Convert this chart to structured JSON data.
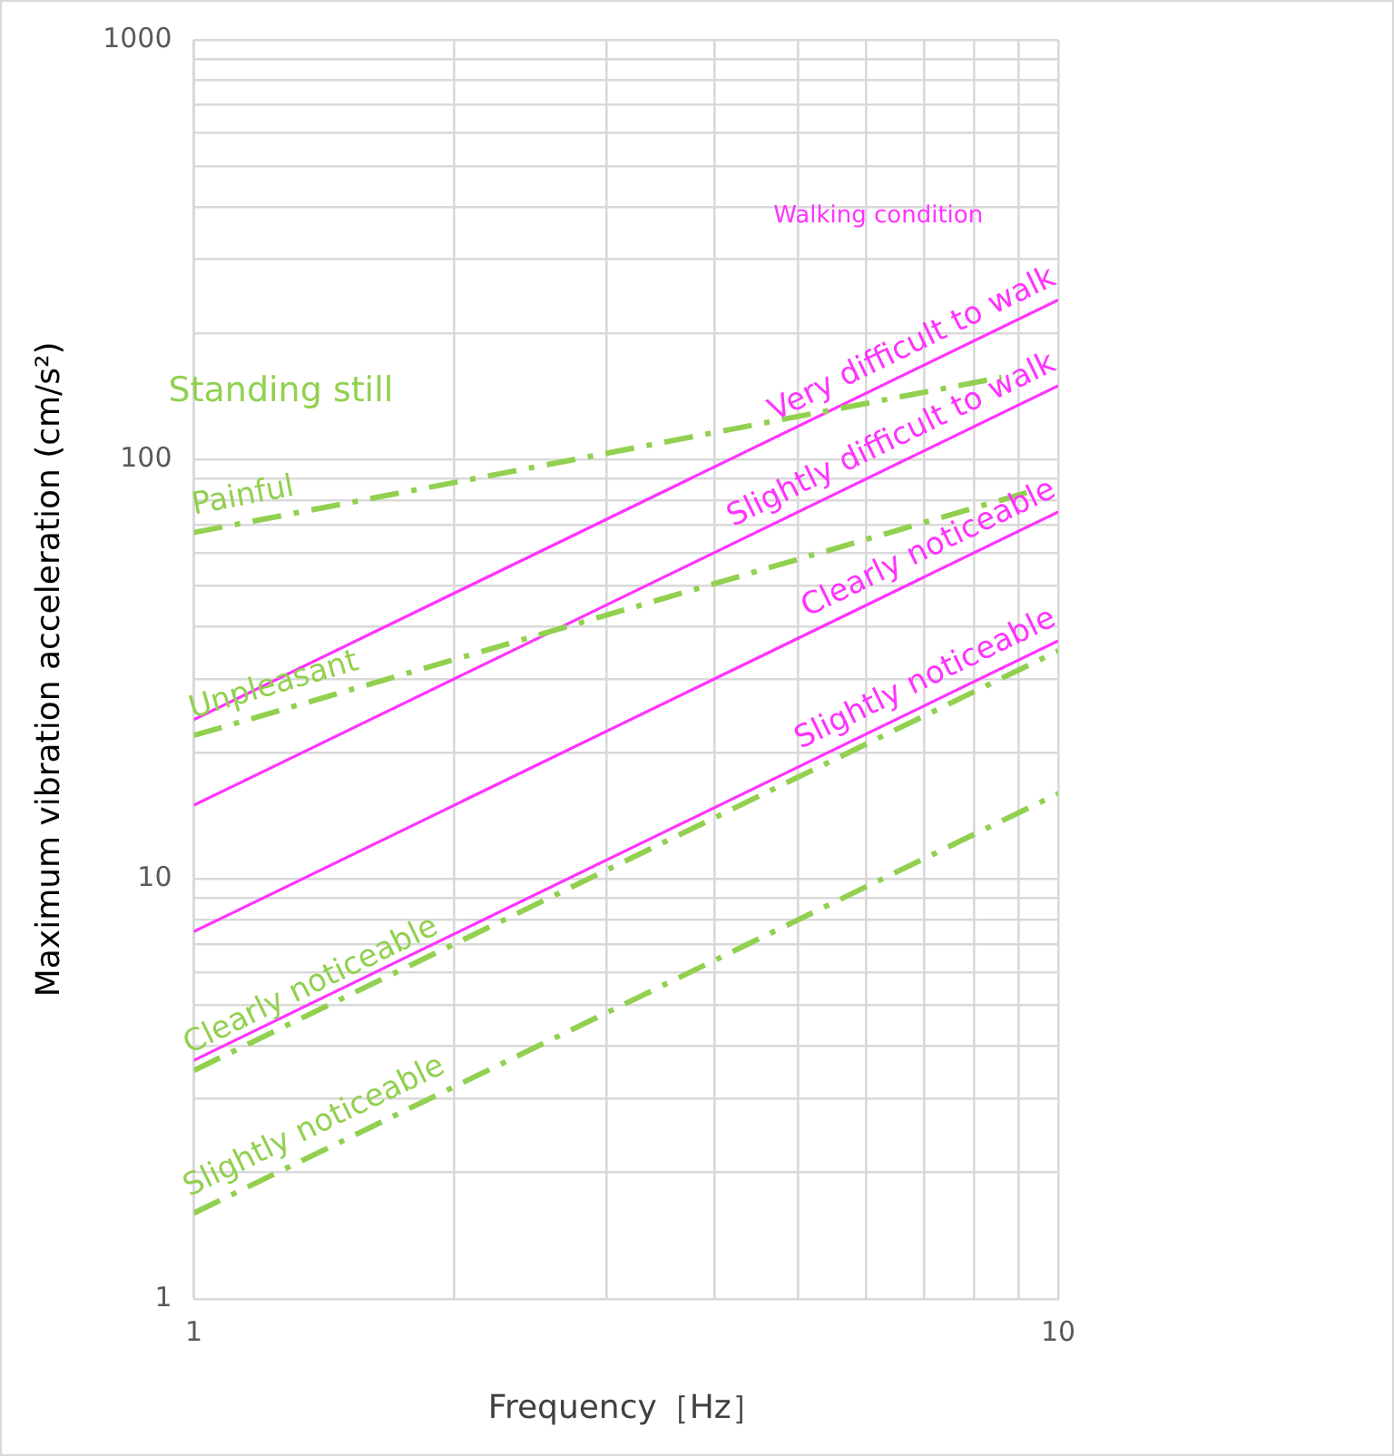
{
  "chart_data": {
    "type": "line",
    "xlabel": "Frequency［Hz］",
    "ylabel": "Maximum vibration acceleration (cm/s²)",
    "log": "xy",
    "grid": true,
    "legend": false,
    "marker": "none",
    "xlim": [
      1,
      10
    ],
    "xticks": [
      1,
      {
        "value": 2,
        "label": null
      },
      {
        "value": 3,
        "label": null
      },
      {
        "value": 4,
        "label": null
      },
      {
        "value": 5,
        "label": null
      },
      {
        "value": 6,
        "label": null
      },
      {
        "value": 7,
        "label": null
      },
      {
        "value": 8,
        "label": null
      },
      {
        "value": 9,
        "label": null
      },
      10
    ],
    "ylim": [
      1,
      1000
    ],
    "yticks": [
      1,
      {
        "value": 2,
        "label": null
      },
      {
        "value": 3,
        "label": null
      },
      {
        "value": 4,
        "label": null
      },
      {
        "value": 5,
        "label": null
      },
      {
        "value": 6,
        "label": null
      },
      {
        "value": 7,
        "label": null
      },
      {
        "value": 8,
        "label": null
      },
      {
        "value": 9,
        "label": null
      },
      10,
      {
        "value": 20,
        "label": null
      },
      {
        "value": 30,
        "label": null
      },
      {
        "value": 40,
        "label": null
      },
      {
        "value": 50,
        "label": null
      },
      {
        "value": 60,
        "label": null
      },
      {
        "value": 70,
        "label": null
      },
      {
        "value": 80,
        "label": null
      },
      {
        "value": 90,
        "label": null
      },
      100,
      {
        "value": 200,
        "label": null
      },
      {
        "value": 300,
        "label": null
      },
      {
        "value": 400,
        "label": null
      },
      {
        "value": 500,
        "label": null
      },
      {
        "value": 600,
        "label": null
      },
      {
        "value": 700,
        "label": null
      },
      {
        "value": 800,
        "label": null
      },
      {
        "value": 900,
        "label": null
      },
      1000
    ],
    "annotations": [
      "Standing still",
      "Walking condition"
    ],
    "series": [
      {
        "name": "Painful",
        "color": "#92d050",
        "line_style": "dashed",
        "x": [
          1,
          8.6
        ],
        "values": [
          67,
          157
        ]
      },
      {
        "name": "Unpleasant",
        "color": "#92d050",
        "line_style": "dashed",
        "x": [
          1,
          9.3
        ],
        "values": [
          22,
          84
        ]
      },
      {
        "name": "Clearly noticeable",
        "color": "#92d050",
        "line_style": "dashed",
        "x": [
          1,
          10
        ],
        "values": [
          3.5,
          35
        ]
      },
      {
        "name": "Slightly noticeable",
        "color": "#92d050",
        "line_style": "dashed",
        "x": [
          1,
          10
        ],
        "values": [
          1.6,
          16
        ]
      },
      {
        "name": "Very difficult to walk",
        "color": "#ff33ff",
        "line_style": "solid",
        "x": [
          1,
          10
        ],
        "values": [
          24,
          240
        ]
      },
      {
        "name": "Slightly difficult to walk",
        "color": "#ff33ff",
        "line_style": "solid",
        "x": [
          1,
          10
        ],
        "values": [
          15,
          150
        ]
      },
      {
        "name": "Clearly noticeable",
        "color": "#ff33ff",
        "line_style": "solid",
        "x": [
          1,
          10
        ],
        "values": [
          7.5,
          75
        ]
      },
      {
        "name": "Slightly noticeable",
        "color": "#ff33ff",
        "line_style": "solid",
        "x": [
          1,
          10
        ],
        "values": [
          3.7,
          37
        ]
      }
    ]
  }
}
